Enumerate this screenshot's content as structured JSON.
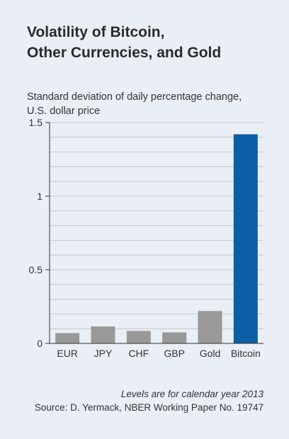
{
  "chart_data": {
    "type": "bar",
    "title_lines": [
      "Volatility of Bitcoin,",
      "Other Currencies, and Gold"
    ],
    "ylabel_lines": [
      "Standard deviation of daily percentage change,",
      "U.S. dollar price"
    ],
    "xlabel": "",
    "categories": [
      "EUR",
      "JPY",
      "CHF",
      "GBP",
      "Gold",
      "Bitcoin"
    ],
    "values": [
      0.07,
      0.115,
      0.085,
      0.075,
      0.22,
      1.42
    ],
    "bar_colors": [
      "#999999",
      "#999999",
      "#999999",
      "#999999",
      "#999999",
      "#0b5fa5"
    ],
    "ylim": [
      0,
      1.5
    ],
    "yticks": [
      0,
      0.5,
      1,
      1.5
    ],
    "ytick_labels": [
      "0",
      "0.5",
      "1",
      "1.5"
    ],
    "grid": true,
    "grid_minor_step": 0.1,
    "legend": "none"
  },
  "footnote": {
    "note": "Levels are for calendar year 2013",
    "source": "Source: D. Yermack, NBER Working Paper No. 19747"
  },
  "colors": {
    "background": "#eaeef5",
    "grid": "#c6c8cc",
    "axis": "#333333",
    "bar_default": "#999999",
    "bar_highlight": "#0b5fa5"
  }
}
